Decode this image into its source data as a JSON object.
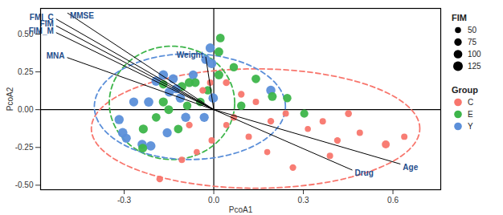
{
  "chart_data": {
    "type": "scatter",
    "x_label": "PcoA1",
    "y_label": "PcoA2",
    "xlim": [
      -0.58,
      0.76
    ],
    "ylim": [
      -0.53,
      0.67
    ],
    "xticks": [
      {
        "value": -0.3,
        "label": "-0.3"
      },
      {
        "value": 0,
        "label": "0.0"
      },
      {
        "value": 0.3,
        "label": "0.3"
      },
      {
        "value": 0.6,
        "label": "0.6"
      }
    ],
    "yticks": [
      {
        "value": -0.5,
        "label": "-0.50"
      },
      {
        "value": -0.25,
        "label": "-0.25"
      },
      {
        "value": 0,
        "label": "0.00"
      },
      {
        "value": 0.25,
        "label": "0.25"
      },
      {
        "value": 0.5,
        "label": "0.50"
      }
    ],
    "origin_lines": {
      "x": 0,
      "y": 0
    },
    "legend_title": "Group",
    "size_legend": {
      "title": "FIM",
      "values": [
        50,
        75,
        100,
        125
      ]
    },
    "series": [
      {
        "name": "C",
        "color": "#F8766D",
        "x": [
          -0.037,
          -0.012,
          0.042,
          0.092,
          0.141,
          0.067,
          0.042,
          0.117,
          0.191,
          0.241,
          0.315,
          0.365,
          0.414,
          0.451,
          0.489,
          0.576,
          0.638,
          -0.181,
          -0.107,
          -0.057,
          -0.007,
          0.265,
          0.389,
          0.179,
          -0.082
        ],
        "y": [
          0.128,
          0.179,
          0.179,
          0.102,
          0.051,
          -0.051,
          -0.102,
          -0.179,
          -0.077,
          -0.026,
          -0.128,
          -0.077,
          -0.204,
          -0.026,
          -0.153,
          -0.23,
          -0.179,
          -0.459,
          -0.332,
          -0.281,
          -0.204,
          -0.383,
          -0.306,
          -0.281,
          -0.102
        ],
        "size": [
          60,
          55,
          65,
          60,
          55,
          60,
          50,
          55,
          60,
          55,
          50,
          55,
          60,
          65,
          55,
          85,
          55,
          60,
          55,
          50,
          55,
          60,
          55,
          50,
          60
        ],
        "ellipse": {
          "cx": 0.14,
          "cy": -0.125,
          "rx": 0.55,
          "ry": 0.395
        }
      },
      {
        "name": "E",
        "color": "#3DB54A",
        "x": [
          0.022,
          0.017,
          0.067,
          -0.082,
          -0.062,
          -0.107,
          -0.169,
          -0.02,
          0.141,
          0.196,
          0.246,
          0.303,
          -0.169,
          -0.151,
          -0.193,
          -0.236,
          -0.238,
          -0.089,
          -0.045,
          0.017,
          0.092,
          -0.119
        ],
        "y": [
          0.474,
          0.383,
          0.281,
          0.179,
          0.179,
          0.153,
          0.168,
          0.128,
          0.204,
          0.087,
          0.077,
          -0.026,
          0.051,
          0,
          -0.051,
          -0.128,
          -0.255,
          0.026,
          0.051,
          0.23,
          0.026,
          -0.128
        ],
        "size": [
          100,
          105,
          95,
          110,
          105,
          110,
          100,
          95,
          100,
          105,
          95,
          90,
          110,
          105,
          100,
          110,
          105,
          95,
          100,
          110,
          95,
          100
        ],
        "ellipse": {
          "cx": -0.14,
          "cy": 0.045,
          "rx": 0.21,
          "ry": 0.375
        }
      },
      {
        "name": "Y",
        "color": "#5B8FD9",
        "x": [
          -0.012,
          -0.007,
          -0.027,
          -0.136,
          -0.193,
          -0.126,
          -0.149,
          -0.218,
          -0.268,
          -0.317,
          -0.305,
          -0.293,
          -0.24,
          -0.211,
          -0.156,
          -0.094,
          -0.032,
          -0.002,
          0.191,
          -0.069,
          -0.112,
          -0.169
        ],
        "y": [
          0.408,
          0.306,
          0.332,
          0.204,
          0.189,
          0.138,
          0.117,
          0.051,
          0.051,
          -0.066,
          -0.153,
          -0.189,
          -0.23,
          -0.24,
          -0.153,
          -0.051,
          -0.051,
          0.077,
          0.128,
          0.23,
          0.077,
          0.23
        ],
        "size": [
          115,
          120,
          110,
          115,
          120,
          110,
          115,
          120,
          110,
          115,
          120,
          110,
          115,
          120,
          110,
          115,
          110,
          120,
          115,
          110,
          115,
          120
        ],
        "ellipse": {
          "cx": -0.08,
          "cy": 0.02,
          "rx": 0.32,
          "ry": 0.35
        }
      }
    ],
    "vectors": {
      "color": "#1F4E8C",
      "items": [
        {
          "name": "MMSE",
          "x": -0.49,
          "y": 0.64
        },
        {
          "name": "FMI_C",
          "x": -0.528,
          "y": 0.6
        },
        {
          "name": "FIM",
          "x": -0.528,
          "y": 0.555
        },
        {
          "name": "FIM_M",
          "x": -0.528,
          "y": 0.51
        },
        {
          "name": "MNA",
          "x": -0.491,
          "y": 0.345
        },
        {
          "name": "Weight",
          "x": -0.027,
          "y": 0.35
        },
        {
          "name": "Drug",
          "x": 0.464,
          "y": -0.4
        },
        {
          "name": "Age",
          "x": 0.625,
          "y": -0.36
        }
      ]
    }
  }
}
